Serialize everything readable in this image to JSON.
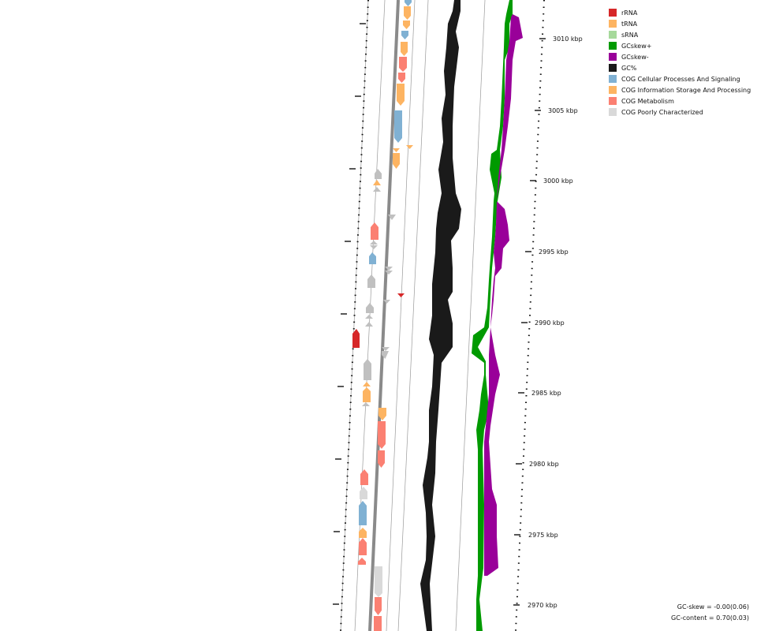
{
  "legend": [
    {
      "label": "rRNA",
      "color": "#d62728"
    },
    {
      "label": "tRNA",
      "color": "#fdb462"
    },
    {
      "label": "sRNA",
      "color": "#a6d99b"
    },
    {
      "label": "GCskew+",
      "color": "#009a00"
    },
    {
      "label": "GCskew-",
      "color": "#990099"
    },
    {
      "label": "GC%",
      "color": "#1a1a1a"
    },
    {
      "label": "COG Cellular Processes And Signaling",
      "color": "#80b1d3"
    },
    {
      "label": "COG Information Storage And Processing",
      "color": "#fdb462"
    },
    {
      "label": "COG Metabolism",
      "color": "#fb8072"
    },
    {
      "label": "COG Poorly Characterized",
      "color": "#d9d9d9"
    }
  ],
  "ticks": [
    "3010 kbp",
    "3005 kbp",
    "3000 kbp",
    "2995 kbp",
    "2990 kbp",
    "2985 kbp",
    "2980 kbp",
    "2975 kbp",
    "2970 kbp"
  ],
  "stats": {
    "gc_skew": "GC-skew = -0.00(0.06)",
    "gc_content": "GC-content = 0.70(0.03)"
  }
}
